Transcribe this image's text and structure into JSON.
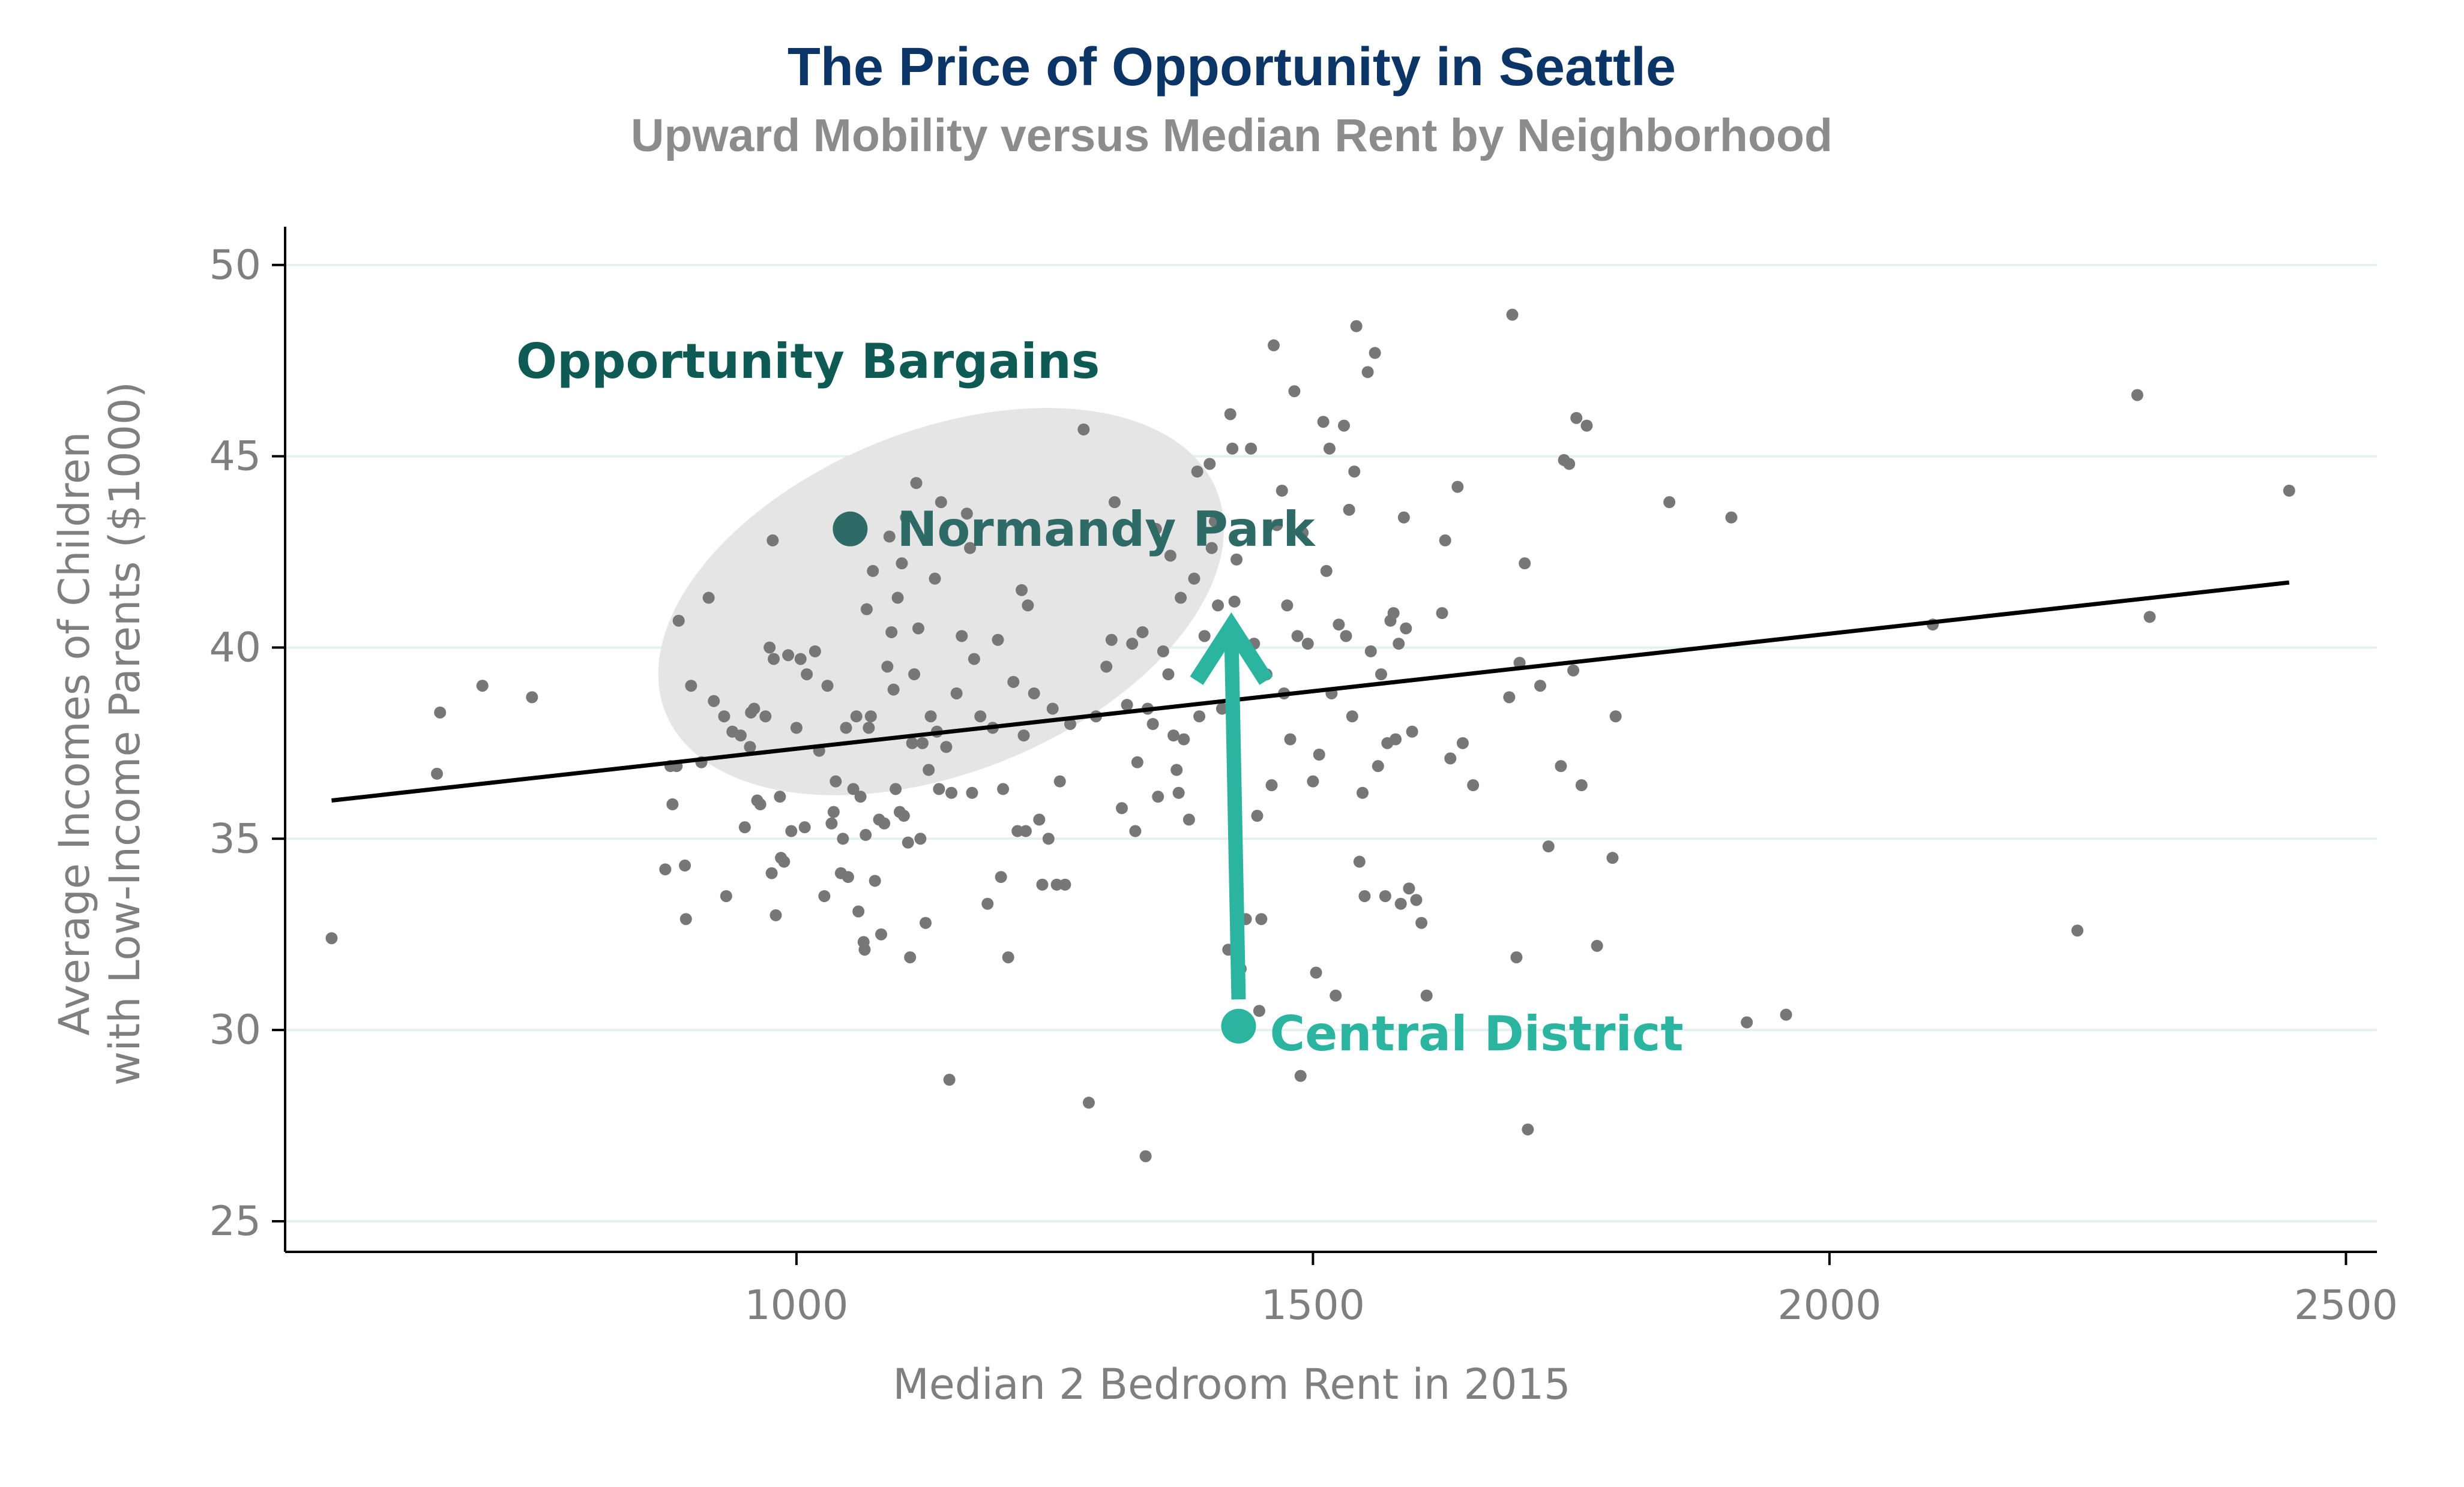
{
  "chart_data": {
    "type": "scatter",
    "title": "The Price of Opportunity in Seattle",
    "subtitle": "Upward Mobility versus Median Rent by Neighborhood",
    "xlabel": "Median 2 Bedroom Rent in 2015",
    "ylabel_line1": "Average Incomes of Children",
    "ylabel_line2": "with Low-Income Parents ($1000)",
    "xlim": [
      505,
      2530
    ],
    "ylim": [
      24.2,
      51.0
    ],
    "xticks": [
      1000,
      1500,
      2000,
      2500
    ],
    "yticks": [
      25,
      30,
      35,
      40,
      45,
      50
    ],
    "grid": "horizontal",
    "colors": {
      "title": "#0b3566",
      "subtitle": "#8c8c8c",
      "axis_text": "#7f7f7f",
      "points": "#777777",
      "gridline": "#e3f1ef",
      "trend": "#000000",
      "highlight_dark": "#2e6b66",
      "highlight_teal": "#2bb5a0",
      "bargain_ellipse": "#e5e5e5",
      "bargain_text": "#0e5a55"
    },
    "trend_line": {
      "x": [
        550,
        2445
      ],
      "y": [
        36.0,
        41.7
      ]
    },
    "annotations": {
      "region_label": "Opportunity Bargains",
      "region_center": [
        1140,
        41.2
      ],
      "highlight_1": {
        "label": "Normandy Park",
        "x": 1052,
        "y": 43.1
      },
      "highlight_2": {
        "label": "Central District",
        "x": 1428,
        "y": 30.1
      },
      "arrow": {
        "x_from": 1428,
        "y_from": 30.8,
        "x_to": 1421,
        "y_to": 40.7
      }
    },
    "points": [
      [
        550,
        32.4
      ],
      [
        655,
        38.3
      ],
      [
        652,
        36.7
      ],
      [
        696,
        39.0
      ],
      [
        744,
        38.7
      ],
      [
        873,
        34.2
      ],
      [
        878,
        36.9
      ],
      [
        880,
        35.9
      ],
      [
        884,
        36.9
      ],
      [
        886,
        40.7
      ],
      [
        892,
        34.3
      ],
      [
        893,
        32.9
      ],
      [
        898,
        39.0
      ],
      [
        908,
        37.0
      ],
      [
        915,
        41.3
      ],
      [
        920,
        38.6
      ],
      [
        930,
        38.2
      ],
      [
        932,
        33.5
      ],
      [
        938,
        37.8
      ],
      [
        946,
        37.7
      ],
      [
        950,
        35.3
      ],
      [
        955,
        37.4
      ],
      [
        956,
        38.3
      ],
      [
        959,
        38.4
      ],
      [
        962,
        36.0
      ],
      [
        965,
        35.9
      ],
      [
        970,
        38.2
      ],
      [
        974,
        40.0
      ],
      [
        976,
        34.1
      ],
      [
        977,
        42.8
      ],
      [
        978,
        39.7
      ],
      [
        980,
        33.0
      ],
      [
        984,
        36.1
      ],
      [
        985,
        34.5
      ],
      [
        988,
        34.4
      ],
      [
        992,
        39.8
      ],
      [
        995,
        35.2
      ],
      [
        1000,
        37.9
      ],
      [
        1004,
        39.7
      ],
      [
        1008,
        35.3
      ],
      [
        1010,
        39.3
      ],
      [
        1018,
        39.9
      ],
      [
        1022,
        37.3
      ],
      [
        1027,
        33.5
      ],
      [
        1030,
        39.0
      ],
      [
        1034,
        35.4
      ],
      [
        1036,
        35.7
      ],
      [
        1038,
        36.5
      ],
      [
        1043,
        34.1
      ],
      [
        1045,
        35.0
      ],
      [
        1048,
        37.9
      ],
      [
        1050,
        34.0
      ],
      [
        1052,
        43.1
      ],
      [
        1055,
        36.3
      ],
      [
        1058,
        38.2
      ],
      [
        1060,
        33.1
      ],
      [
        1062,
        36.1
      ],
      [
        1065,
        32.3
      ],
      [
        1066,
        32.1
      ],
      [
        1067,
        35.1
      ],
      [
        1068,
        41.0
      ],
      [
        1070,
        37.9
      ],
      [
        1072,
        38.2
      ],
      [
        1074,
        42.0
      ],
      [
        1076,
        33.9
      ],
      [
        1080,
        35.5
      ],
      [
        1082,
        32.5
      ],
      [
        1085,
        35.4
      ],
      [
        1088,
        39.5
      ],
      [
        1090,
        42.9
      ],
      [
        1092,
        40.4
      ],
      [
        1094,
        38.9
      ],
      [
        1096,
        36.3
      ],
      [
        1098,
        41.3
      ],
      [
        1100,
        35.7
      ],
      [
        1102,
        42.2
      ],
      [
        1104,
        35.6
      ],
      [
        1106,
        43.4
      ],
      [
        1108,
        34.9
      ],
      [
        1110,
        31.9
      ],
      [
        1112,
        37.5
      ],
      [
        1114,
        39.3
      ],
      [
        1116,
        44.3
      ],
      [
        1118,
        40.5
      ],
      [
        1120,
        35.0
      ],
      [
        1122,
        37.5
      ],
      [
        1125,
        32.8
      ],
      [
        1128,
        36.8
      ],
      [
        1130,
        38.2
      ],
      [
        1134,
        41.8
      ],
      [
        1136,
        37.8
      ],
      [
        1138,
        36.3
      ],
      [
        1140,
        43.8
      ],
      [
        1145,
        37.4
      ],
      [
        1148,
        28.7
      ],
      [
        1150,
        36.2
      ],
      [
        1155,
        38.8
      ],
      [
        1160,
        40.3
      ],
      [
        1165,
        43.5
      ],
      [
        1168,
        42.6
      ],
      [
        1170,
        36.2
      ],
      [
        1172,
        39.7
      ],
      [
        1178,
        38.2
      ],
      [
        1185,
        33.3
      ],
      [
        1190,
        37.9
      ],
      [
        1195,
        40.2
      ],
      [
        1198,
        34.0
      ],
      [
        1200,
        36.3
      ],
      [
        1205,
        31.9
      ],
      [
        1210,
        39.1
      ],
      [
        1214,
        35.2
      ],
      [
        1218,
        41.5
      ],
      [
        1220,
        37.7
      ],
      [
        1222,
        35.2
      ],
      [
        1224,
        41.1
      ],
      [
        1230,
        38.8
      ],
      [
        1235,
        35.5
      ],
      [
        1238,
        33.8
      ],
      [
        1244,
        35.0
      ],
      [
        1248,
        38.4
      ],
      [
        1252,
        33.8
      ],
      [
        1255,
        36.5
      ],
      [
        1260,
        33.8
      ],
      [
        1265,
        38.0
      ],
      [
        1278,
        45.7
      ],
      [
        1283,
        28.1
      ],
      [
        1290,
        38.2
      ],
      [
        1300,
        39.5
      ],
      [
        1305,
        40.2
      ],
      [
        1308,
        43.8
      ],
      [
        1315,
        35.8
      ],
      [
        1320,
        38.5
      ],
      [
        1325,
        40.1
      ],
      [
        1328,
        35.2
      ],
      [
        1330,
        37.0
      ],
      [
        1335,
        40.4
      ],
      [
        1338,
        26.7
      ],
      [
        1340,
        38.4
      ],
      [
        1345,
        38.0
      ],
      [
        1348,
        43.1
      ],
      [
        1350,
        36.1
      ],
      [
        1355,
        39.9
      ],
      [
        1360,
        39.3
      ],
      [
        1362,
        42.4
      ],
      [
        1365,
        37.7
      ],
      [
        1368,
        36.8
      ],
      [
        1370,
        36.2
      ],
      [
        1372,
        41.3
      ],
      [
        1375,
        37.6
      ],
      [
        1380,
        35.5
      ],
      [
        1385,
        41.8
      ],
      [
        1388,
        44.6
      ],
      [
        1390,
        38.2
      ],
      [
        1395,
        40.3
      ],
      [
        1400,
        44.8
      ],
      [
        1402,
        42.6
      ],
      [
        1405,
        43.3
      ],
      [
        1408,
        41.1
      ],
      [
        1412,
        38.4
      ],
      [
        1418,
        32.1
      ],
      [
        1420,
        46.1
      ],
      [
        1422,
        45.2
      ],
      [
        1424,
        41.2
      ],
      [
        1426,
        42.3
      ],
      [
        1430,
        31.6
      ],
      [
        1435,
        32.9
      ],
      [
        1440,
        45.2
      ],
      [
        1443,
        40.1
      ],
      [
        1446,
        35.6
      ],
      [
        1448,
        30.5
      ],
      [
        1450,
        32.9
      ],
      [
        1455,
        39.3
      ],
      [
        1460,
        36.4
      ],
      [
        1462,
        47.9
      ],
      [
        1465,
        43.2
      ],
      [
        1470,
        44.1
      ],
      [
        1472,
        38.8
      ],
      [
        1475,
        41.1
      ],
      [
        1478,
        37.6
      ],
      [
        1482,
        46.7
      ],
      [
        1485,
        40.3
      ],
      [
        1488,
        28.8
      ],
      [
        1490,
        43.0
      ],
      [
        1495,
        40.1
      ],
      [
        1500,
        36.5
      ],
      [
        1503,
        31.5
      ],
      [
        1506,
        37.2
      ],
      [
        1510,
        45.9
      ],
      [
        1513,
        42.0
      ],
      [
        1516,
        45.2
      ],
      [
        1518,
        38.8
      ],
      [
        1522,
        30.9
      ],
      [
        1525,
        40.6
      ],
      [
        1530,
        45.8
      ],
      [
        1532,
        40.3
      ],
      [
        1535,
        43.6
      ],
      [
        1538,
        38.2
      ],
      [
        1540,
        44.6
      ],
      [
        1542,
        48.4
      ],
      [
        1545,
        34.4
      ],
      [
        1548,
        36.2
      ],
      [
        1550,
        33.5
      ],
      [
        1553,
        47.2
      ],
      [
        1556,
        39.9
      ],
      [
        1560,
        47.7
      ],
      [
        1563,
        36.9
      ],
      [
        1566,
        39.3
      ],
      [
        1570,
        33.5
      ],
      [
        1572,
        37.5
      ],
      [
        1575,
        40.7
      ],
      [
        1578,
        40.9
      ],
      [
        1580,
        37.6
      ],
      [
        1583,
        40.1
      ],
      [
        1585,
        33.3
      ],
      [
        1588,
        43.4
      ],
      [
        1590,
        40.5
      ],
      [
        1593,
        33.7
      ],
      [
        1596,
        37.8
      ],
      [
        1600,
        33.4
      ],
      [
        1605,
        32.8
      ],
      [
        1610,
        30.9
      ],
      [
        1625,
        40.9
      ],
      [
        1628,
        42.8
      ],
      [
        1633,
        37.1
      ],
      [
        1640,
        44.2
      ],
      [
        1645,
        37.5
      ],
      [
        1655,
        36.4
      ],
      [
        1690,
        38.7
      ],
      [
        1693,
        48.7
      ],
      [
        1697,
        31.9
      ],
      [
        1700,
        39.6
      ],
      [
        1705,
        42.2
      ],
      [
        1708,
        27.4
      ],
      [
        1720,
        39.0
      ],
      [
        1728,
        34.8
      ],
      [
        1740,
        36.9
      ],
      [
        1743,
        44.9
      ],
      [
        1748,
        44.8
      ],
      [
        1752,
        39.4
      ],
      [
        1755,
        46.0
      ],
      [
        1760,
        36.4
      ],
      [
        1765,
        45.8
      ],
      [
        1775,
        32.2
      ],
      [
        1790,
        34.5
      ],
      [
        1793,
        38.2
      ],
      [
        1845,
        43.8
      ],
      [
        1905,
        43.4
      ],
      [
        1920,
        30.2
      ],
      [
        1958,
        30.4
      ],
      [
        2100,
        40.6
      ],
      [
        2240,
        32.6
      ],
      [
        2298,
        46.6
      ],
      [
        2310,
        40.8
      ],
      [
        2445,
        44.1
      ]
    ]
  }
}
